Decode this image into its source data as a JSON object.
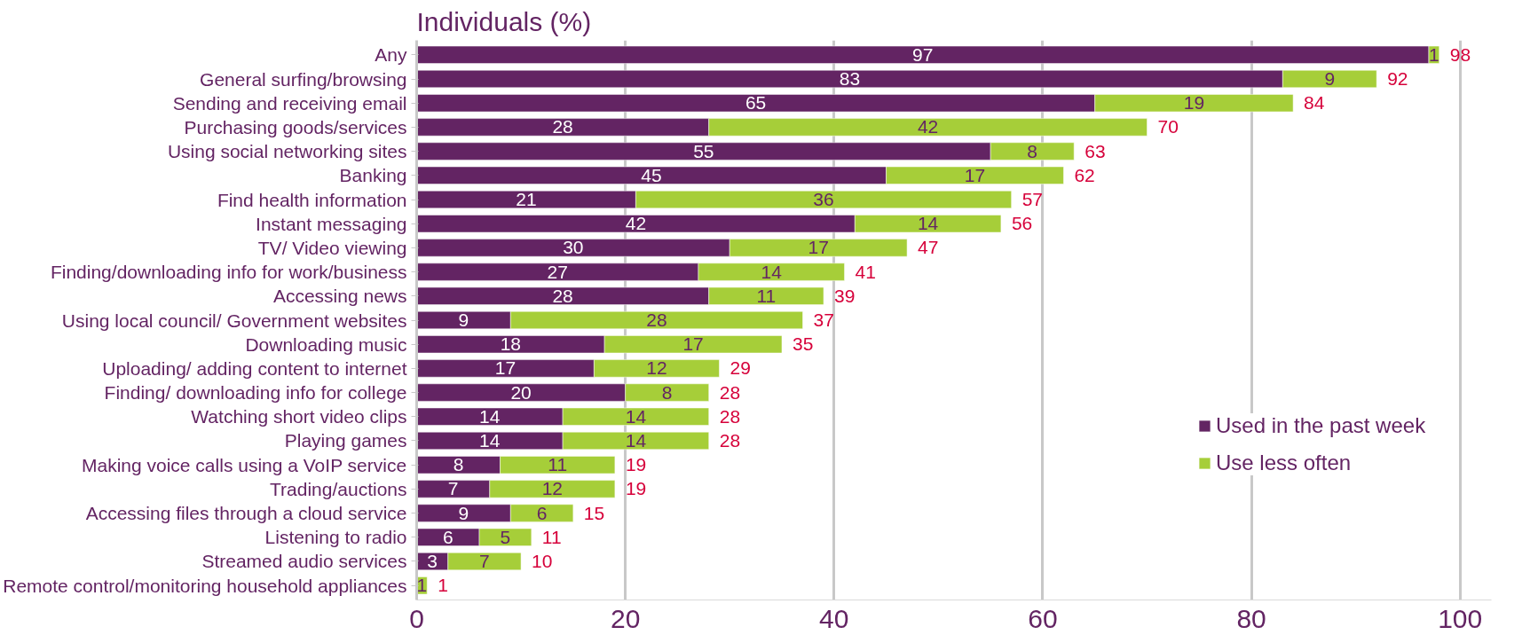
{
  "chart_data": {
    "type": "bar",
    "orientation": "horizontal",
    "stacked": true,
    "title": "Individuals (%)",
    "categories": [
      "Any",
      "General surfing/browsing",
      "Sending and receiving email",
      "Purchasing goods/services",
      "Using social networking sites",
      "Banking",
      "Find health information",
      "Instant messaging",
      "TV/ Video viewing",
      "Finding/downloading info for work/business",
      "Accessing news",
      "Using local council/ Government websites",
      "Downloading music",
      "Uploading/ adding content to internet",
      "Finding/ downloading info for college",
      "Watching short video clips",
      "Playing games",
      "Making voice calls using a VoIP service",
      "Trading/auctions",
      "Accessing files through a cloud service",
      "Listening to radio",
      "Streamed audio services",
      "Remote control/monitoring household appliances"
    ],
    "series": [
      {
        "name": "Used in the past week",
        "color": "#632463",
        "values": [
          97,
          83,
          65,
          28,
          55,
          45,
          21,
          42,
          30,
          27,
          28,
          9,
          18,
          17,
          20,
          14,
          14,
          8,
          7,
          9,
          6,
          3,
          0
        ],
        "value_labels": [
          "97",
          "83",
          "65",
          "28",
          "55",
          "45",
          "21",
          "42",
          "30",
          "27",
          "28",
          "9",
          "18",
          "17",
          "20",
          "14",
          "14",
          "8",
          "7",
          "9",
          "6",
          "3",
          null
        ]
      },
      {
        "name": "Use less often",
        "color": "#a6ce39",
        "values": [
          1,
          9,
          19,
          42,
          8,
          17,
          36,
          14,
          17,
          14,
          11,
          28,
          17,
          12,
          8,
          14,
          14,
          11,
          12,
          6,
          5,
          7,
          1
        ],
        "value_labels": [
          "1",
          "9",
          "19",
          "42",
          "8",
          "17",
          "36",
          "14",
          "17",
          "14",
          "11",
          "28",
          "17",
          "12",
          "8",
          "14",
          "14",
          "11",
          "12",
          "6",
          "5",
          "7",
          "1"
        ]
      }
    ],
    "totals": [
      "98",
      "92",
      "84",
      "70",
      "63",
      "62",
      "57",
      "56",
      "47",
      "41",
      "39",
      "37",
      "35",
      "29",
      "28",
      "28",
      "28",
      "19",
      "19",
      "15",
      "11",
      "10",
      "1"
    ],
    "xlim": [
      0,
      103
    ],
    "xticks": [
      0,
      20,
      40,
      60,
      80,
      100
    ],
    "grid": "x",
    "legend": "right"
  }
}
